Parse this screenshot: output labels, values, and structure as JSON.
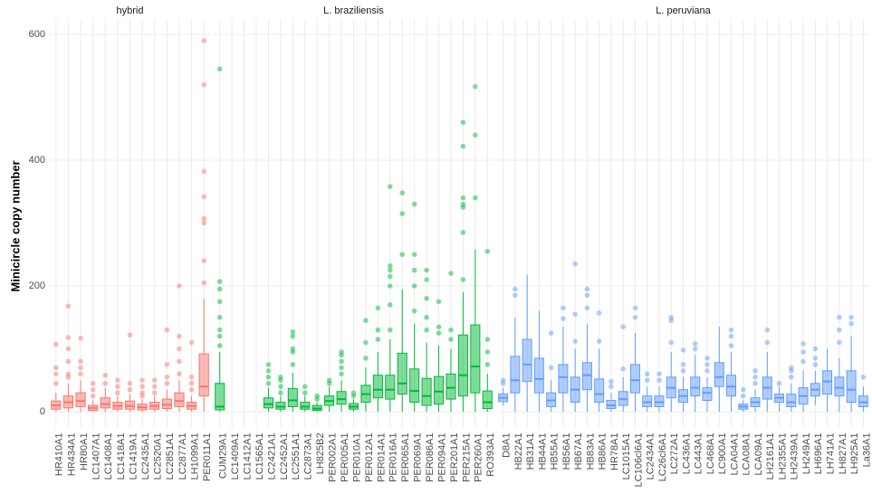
{
  "chart_data": {
    "type": "box",
    "ylabel": "Minicircle copy number",
    "ylim": [
      -25,
      625
    ],
    "yticks": [
      0,
      200,
      400,
      600
    ],
    "grid": true,
    "facets": [
      {
        "title": "hybrid",
        "color": "#F8766D",
        "categories": [
          "HR410A1",
          "HR434A1",
          "HR80A1",
          "LC1407A1",
          "LC1408A1",
          "LC1418A1",
          "LC1419A1",
          "LC2435A1",
          "LC2520A1",
          "LC2851A1",
          "LC2877A1",
          "LH1099A1",
          "PER011A1"
        ],
        "boxes": [
          {
            "lo": 0,
            "q1": 4,
            "median": 10,
            "q3": 17,
            "hi": 30,
            "outliers": [
              45,
              60,
              70,
              107
            ]
          },
          {
            "lo": 0,
            "q1": 6,
            "median": 15,
            "q3": 25,
            "hi": 45,
            "outliers": [
              55,
              60,
              80,
              100,
              118,
              168
            ]
          },
          {
            "lo": 0,
            "q1": 8,
            "median": 17,
            "q3": 30,
            "hi": 50,
            "outliers": [
              60,
              70,
              80,
              117
            ]
          },
          {
            "lo": 0,
            "q1": 2,
            "median": 6,
            "q3": 10,
            "hi": 18,
            "outliers": [
              25,
              35,
              45
            ]
          },
          {
            "lo": 0,
            "q1": 6,
            "median": 12,
            "q3": 22,
            "hi": 38,
            "outliers": [
              45,
              58
            ]
          },
          {
            "lo": 0,
            "q1": 4,
            "median": 9,
            "q3": 15,
            "hi": 25,
            "outliers": [
              30,
              40,
              50
            ]
          },
          {
            "lo": 0,
            "q1": 4,
            "median": 9,
            "q3": 17,
            "hi": 28,
            "outliers": [
              35,
              45,
              122
            ]
          },
          {
            "lo": 0,
            "q1": 3,
            "median": 7,
            "q3": 12,
            "hi": 20,
            "outliers": [
              25,
              30,
              40,
              50
            ]
          },
          {
            "lo": 0,
            "q1": 4,
            "median": 9,
            "q3": 15,
            "hi": 25,
            "outliers": [
              30,
              40,
              50
            ]
          },
          {
            "lo": 0,
            "q1": 5,
            "median": 11,
            "q3": 20,
            "hi": 35,
            "outliers": [
              45,
              55,
              75,
              130
            ]
          },
          {
            "lo": 0,
            "q1": 8,
            "median": 17,
            "q3": 30,
            "hi": 50,
            "outliers": [
              60,
              80,
              100,
              120,
              200
            ]
          },
          {
            "lo": 0,
            "q1": 4,
            "median": 9,
            "q3": 15,
            "hi": 25,
            "outliers": [
              35,
              45,
              55,
              110
            ]
          },
          {
            "lo": 0,
            "q1": 25,
            "median": 40,
            "q3": 92,
            "hi": 180,
            "outliers": [
              205,
              240,
              300,
              307,
              342,
              382,
              520,
              590
            ]
          }
        ]
      },
      {
        "title": "L. braziliensis",
        "color": "#00BA38",
        "categories": [
          "CUM29A1",
          "LC1409A1",
          "LC1412A1",
          "LC1565A1",
          "LC2421A1",
          "LC2452A1",
          "LC2551A1",
          "LC2873A1",
          "LH825B2",
          "PER002A1",
          "PER005A1",
          "PER010A1",
          "PER012A1",
          "PER014A1",
          "PER016A1",
          "PER065A1",
          "PER069A1",
          "PER086A1",
          "PER094A1",
          "PER201A1",
          "PER215A1",
          "PER260A1",
          "RO393A1"
        ],
        "boxes": [
          {
            "lo": 0,
            "q1": 3,
            "median": 8,
            "q3": 45,
            "hi": 95,
            "outliers": [
              105,
              120,
              130,
              150,
              175,
              195,
              207,
              545
            ]
          },
          null,
          null,
          null,
          {
            "lo": 0,
            "q1": 6,
            "median": 12,
            "q3": 22,
            "hi": 38,
            "outliers": [
              45,
              55,
              65,
              75
            ]
          },
          {
            "lo": 0,
            "q1": 4,
            "median": 8,
            "q3": 15,
            "hi": 25,
            "outliers": [
              30,
              40,
              50,
              55
            ]
          },
          {
            "lo": 0,
            "q1": 8,
            "median": 18,
            "q3": 37,
            "hi": 62,
            "outliers": [
              75,
              95,
              100,
              120,
              127
            ]
          },
          {
            "lo": 0,
            "q1": 4,
            "median": 8,
            "q3": 15,
            "hi": 25,
            "outliers": [
              30,
              40
            ]
          },
          {
            "lo": 0,
            "q1": 2,
            "median": 5,
            "q3": 10,
            "hi": 15,
            "outliers": [
              20,
              25
            ]
          },
          {
            "lo": 0,
            "q1": 10,
            "median": 17,
            "q3": 25,
            "hi": 40,
            "outliers": [
              45,
              50
            ]
          },
          {
            "lo": 0,
            "q1": 12,
            "median": 20,
            "q3": 32,
            "hi": 50,
            "outliers": [
              60,
              70,
              80,
              90,
              95
            ]
          },
          {
            "lo": 0,
            "q1": 4,
            "median": 8,
            "q3": 13,
            "hi": 20,
            "outliers": [
              25,
              30
            ]
          },
          {
            "lo": 0,
            "q1": 15,
            "median": 28,
            "q3": 42,
            "hi": 70,
            "outliers": [
              85,
              110,
              145
            ]
          },
          {
            "lo": 0,
            "q1": 22,
            "median": 35,
            "q3": 58,
            "hi": 95,
            "outliers": [
              115,
              130,
              165
            ]
          },
          {
            "lo": 0,
            "q1": 20,
            "median": 35,
            "q3": 58,
            "hi": 115,
            "outliers": [
              130,
              170,
              200,
              215,
              225,
              232,
              358
            ]
          },
          {
            "lo": 0,
            "q1": 28,
            "median": 45,
            "q3": 93,
            "hi": 195,
            "outliers": [
              250,
              315,
              348
            ]
          },
          {
            "lo": 0,
            "q1": 15,
            "median": 33,
            "q3": 68,
            "hi": 140,
            "outliers": [
              160,
              200,
              225,
              250,
              330
            ]
          },
          {
            "lo": 0,
            "q1": 10,
            "median": 25,
            "q3": 53,
            "hi": 110,
            "outliers": [
              130,
              150,
              180,
              210,
              225
            ]
          },
          {
            "lo": 0,
            "q1": 12,
            "median": 32,
            "q3": 56,
            "hi": 105,
            "outliers": [
              125,
              135,
              175
            ]
          },
          {
            "lo": 0,
            "q1": 20,
            "median": 38,
            "q3": 60,
            "hi": 100,
            "outliers": [
              115,
              130,
              220
            ]
          },
          {
            "lo": 0,
            "q1": 25,
            "median": 58,
            "q3": 122,
            "hi": 190,
            "outliers": [
              210,
              285,
              325,
              330,
              340,
              422,
              460
            ]
          },
          {
            "lo": 0,
            "q1": 30,
            "median": 72,
            "q3": 138,
            "hi": 258,
            "outliers": [
              340,
              440,
              517
            ]
          },
          {
            "lo": 0,
            "q1": 5,
            "median": 15,
            "q3": 33,
            "hi": 60,
            "outliers": [
              75,
              95,
              115,
              255
            ]
          }
        ]
      },
      {
        "title": "L. peruviana",
        "color": "#619CFF",
        "categories": [
          "D8A1",
          "HB22A1",
          "HB31A1",
          "HB44A1",
          "HB55A1",
          "HB56A1",
          "HB67A1",
          "HB83A1",
          "HB86A1",
          "HR78A1",
          "LC1015A1",
          "LC106cl6A1",
          "LC2434A1",
          "LC26cl6A1",
          "LC272A1",
          "LC436A1",
          "LC443A1",
          "LC468A1",
          "LC900A1",
          "LCA04A1",
          "LCA08A1",
          "LCA09A1",
          "LH2161A1",
          "LH2355A1",
          "LH2439A1",
          "LH249A1",
          "LH696A1",
          "LH741A1",
          "LH827A1",
          "LH925A1",
          "La36A1"
        ],
        "boxes": [
          {
            "lo": 10,
            "q1": 16,
            "median": 22,
            "q3": 28,
            "hi": 38,
            "outliers": [
              45,
              50
            ]
          },
          {
            "lo": 0,
            "q1": 30,
            "median": 50,
            "q3": 88,
            "hi": 150,
            "outliers": [
              185,
              195
            ]
          },
          {
            "lo": 0,
            "q1": 48,
            "median": 75,
            "q3": 115,
            "hi": 218,
            "outliers": []
          },
          {
            "lo": 0,
            "q1": 30,
            "median": 52,
            "q3": 85,
            "hi": 160,
            "outliers": []
          },
          {
            "lo": 0,
            "q1": 8,
            "median": 18,
            "q3": 30,
            "hi": 50,
            "outliers": [
              70,
              125
            ]
          },
          {
            "lo": 0,
            "q1": 30,
            "median": 55,
            "q3": 75,
            "hi": 135,
            "outliers": [
              148,
              165
            ]
          },
          {
            "lo": 0,
            "q1": 15,
            "median": 35,
            "q3": 55,
            "hi": 100,
            "outliers": [
              112,
              155,
              235
            ]
          },
          {
            "lo": 0,
            "q1": 35,
            "median": 58,
            "q3": 78,
            "hi": 140,
            "outliers": [
              165,
              185,
              195
            ]
          },
          {
            "lo": 0,
            "q1": 15,
            "median": 28,
            "q3": 52,
            "hi": 100,
            "outliers": [
              112,
              157
            ]
          },
          {
            "lo": 0,
            "q1": 5,
            "median": 10,
            "q3": 18,
            "hi": 30,
            "outliers": [
              40,
              48
            ]
          },
          {
            "lo": 0,
            "q1": 10,
            "median": 20,
            "q3": 32,
            "hi": 55,
            "outliers": [
              68,
              135
            ]
          },
          {
            "lo": 0,
            "q1": 30,
            "median": 50,
            "q3": 75,
            "hi": 125,
            "outliers": [
              150,
              165
            ]
          },
          {
            "lo": 0,
            "q1": 8,
            "median": 15,
            "q3": 25,
            "hi": 40,
            "outliers": [
              50,
              60
            ]
          },
          {
            "lo": 0,
            "q1": 8,
            "median": 15,
            "q3": 25,
            "hi": 40,
            "outliers": [
              50,
              60
            ]
          },
          {
            "lo": 0,
            "q1": 22,
            "median": 38,
            "q3": 55,
            "hi": 95,
            "outliers": [
              110,
              145,
              150
            ]
          },
          {
            "lo": 0,
            "q1": 15,
            "median": 25,
            "q3": 35,
            "hi": 55,
            "outliers": [
              65,
              75,
              98
            ]
          },
          {
            "lo": 0,
            "q1": 25,
            "median": 38,
            "q3": 55,
            "hi": 90,
            "outliers": [
              100,
              108
            ]
          },
          {
            "lo": 0,
            "q1": 18,
            "median": 30,
            "q3": 38,
            "hi": 55,
            "outliers": [
              65,
              75,
              85
            ]
          },
          {
            "lo": 0,
            "q1": 40,
            "median": 55,
            "q3": 78,
            "hi": 135,
            "outliers": []
          },
          {
            "lo": 0,
            "q1": 25,
            "median": 40,
            "q3": 58,
            "hi": 95,
            "outliers": [
              105,
              120,
              130
            ]
          },
          {
            "lo": 0,
            "q1": 4,
            "median": 8,
            "q3": 12,
            "hi": 18,
            "outliers": [
              25,
              35
            ]
          },
          {
            "lo": 0,
            "q1": 8,
            "median": 15,
            "q3": 22,
            "hi": 35,
            "outliers": [
              45,
              55,
              65
            ]
          },
          {
            "lo": 0,
            "q1": 20,
            "median": 38,
            "q3": 55,
            "hi": 95,
            "outliers": [
              110,
              130
            ]
          },
          {
            "lo": 0,
            "q1": 15,
            "median": 22,
            "q3": 28,
            "hi": 40,
            "outliers": [
              45
            ]
          },
          {
            "lo": 0,
            "q1": 8,
            "median": 15,
            "q3": 28,
            "hi": 45,
            "outliers": [
              55,
              65,
              70
            ]
          },
          {
            "lo": 0,
            "q1": 12,
            "median": 25,
            "q3": 38,
            "hi": 65,
            "outliers": [
              80,
              95,
              108
            ]
          },
          {
            "lo": 10,
            "q1": 25,
            "median": 35,
            "q3": 45,
            "hi": 65,
            "outliers": [
              75,
              85,
              100
            ]
          },
          {
            "lo": 0,
            "q1": 28,
            "median": 48,
            "q3": 65,
            "hi": 100,
            "outliers": []
          },
          {
            "lo": 0,
            "q1": 25,
            "median": 38,
            "q3": 55,
            "hi": 85,
            "outliers": [
              110,
              130,
              150
            ]
          },
          {
            "lo": 0,
            "q1": 15,
            "median": 35,
            "q3": 65,
            "hi": 120,
            "outliers": [
              140,
              150
            ]
          },
          {
            "lo": 0,
            "q1": 8,
            "median": 15,
            "q3": 25,
            "hi": 40,
            "outliers": [
              55
            ]
          }
        ]
      }
    ]
  }
}
